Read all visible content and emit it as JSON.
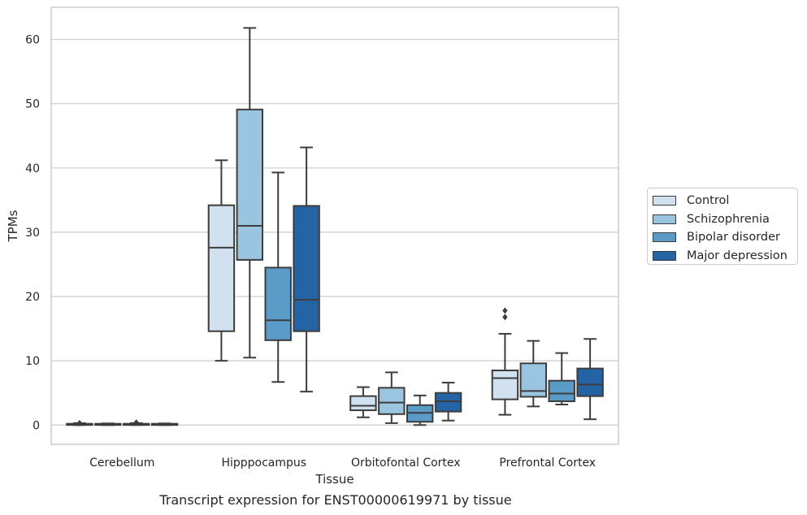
{
  "caption": "Transcript expression for ENST00000619971 by tissue",
  "chart_data": {
    "type": "box",
    "xlabel": "Tissue",
    "ylabel": "TPMs",
    "ylim": [
      -3,
      65
    ],
    "yticks": [
      0,
      10,
      20,
      30,
      40,
      50,
      60
    ],
    "grid": true,
    "legend_position": "right",
    "categories": [
      "Cerebellum",
      "Hipppocampus",
      "Orbitofontal Cortex",
      "Prefrontal Cortex"
    ],
    "series": [
      {
        "name": "Control",
        "color": "#d1e1f0",
        "boxes": [
          {
            "whisker_low": 0.0,
            "q1": 0.02,
            "median": 0.1,
            "q3": 0.2,
            "whisker_high": 0.3,
            "outliers": [
              0.3
            ]
          },
          {
            "whisker_low": 10.0,
            "q1": 14.6,
            "median": 27.6,
            "q3": 34.2,
            "whisker_high": 41.2,
            "outliers": []
          },
          {
            "whisker_low": 1.2,
            "q1": 2.3,
            "median": 3.0,
            "q3": 4.5,
            "whisker_high": 5.9,
            "outliers": []
          },
          {
            "whisker_low": 1.6,
            "q1": 4.0,
            "median": 7.3,
            "q3": 8.5,
            "whisker_high": 14.2,
            "outliers": [
              16.8,
              17.8
            ]
          }
        ]
      },
      {
        "name": "Schizophrenia",
        "color": "#9bc4e0",
        "boxes": [
          {
            "whisker_low": 0.0,
            "q1": 0.03,
            "median": 0.12,
            "q3": 0.2,
            "whisker_high": 0.25,
            "outliers": []
          },
          {
            "whisker_low": 10.5,
            "q1": 25.7,
            "median": 31.0,
            "q3": 49.1,
            "whisker_high": 61.8,
            "outliers": []
          },
          {
            "whisker_low": 0.3,
            "q1": 1.7,
            "median": 3.5,
            "q3": 5.8,
            "whisker_high": 8.2,
            "outliers": []
          },
          {
            "whisker_low": 2.9,
            "q1": 4.4,
            "median": 5.3,
            "q3": 9.6,
            "whisker_high": 13.1,
            "outliers": []
          }
        ]
      },
      {
        "name": "Bipolar disorder",
        "color": "#5a9bc8",
        "boxes": [
          {
            "whisker_low": 0.0,
            "q1": 0.03,
            "median": 0.1,
            "q3": 0.2,
            "whisker_high": 0.3,
            "outliers": [
              0.4
            ]
          },
          {
            "whisker_low": 6.7,
            "q1": 13.2,
            "median": 16.3,
            "q3": 24.5,
            "whisker_high": 39.3,
            "outliers": []
          },
          {
            "whisker_low": 0.0,
            "q1": 0.5,
            "median": 1.9,
            "q3": 3.1,
            "whisker_high": 4.6,
            "outliers": []
          },
          {
            "whisker_low": 3.2,
            "q1": 3.7,
            "median": 4.9,
            "q3": 6.9,
            "whisker_high": 11.2,
            "outliers": []
          }
        ]
      },
      {
        "name": "Major depression",
        "color": "#2463a4",
        "boxes": [
          {
            "whisker_low": 0.0,
            "q1": 0.02,
            "median": 0.1,
            "q3": 0.2,
            "whisker_high": 0.25,
            "outliers": []
          },
          {
            "whisker_low": 5.2,
            "q1": 14.6,
            "median": 19.5,
            "q3": 34.1,
            "whisker_high": 43.2,
            "outliers": []
          },
          {
            "whisker_low": 0.7,
            "q1": 2.1,
            "median": 3.7,
            "q3": 5.0,
            "whisker_high": 6.6,
            "outliers": []
          },
          {
            "whisker_low": 0.9,
            "q1": 4.5,
            "median": 6.3,
            "q3": 8.8,
            "whisker_high": 13.4,
            "outliers": []
          }
        ]
      }
    ]
  }
}
